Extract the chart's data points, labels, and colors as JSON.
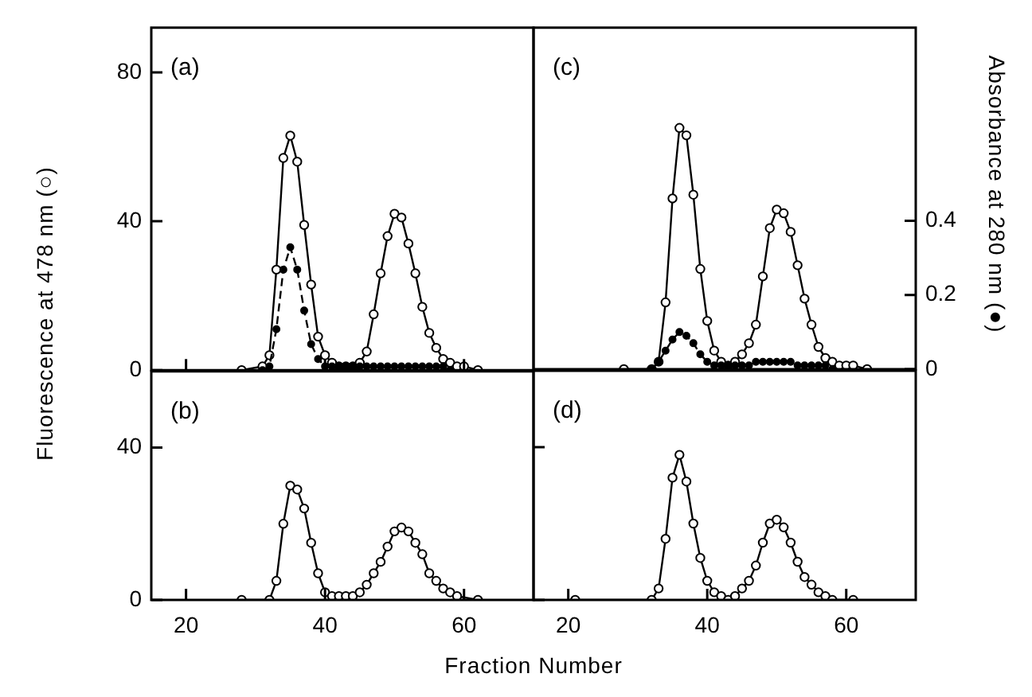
{
  "chart_data": [
    {
      "type": "line",
      "ylabel": "Fluorescence at 478 nm (○)",
      "annotations": [
        "(a)"
      ],
      "tick_labels": "y",
      "xlim": [
        15,
        70
      ],
      "xticks": [
        20,
        40,
        60
      ],
      "ylim": [
        0,
        92
      ],
      "yticks": [
        0,
        40,
        80
      ],
      "y2lim": [
        0,
        0.92
      ],
      "grid": false,
      "legend": false,
      "series": [
        {
          "color": "#000000",
          "marker": "circle",
          "line_style": "solid",
          "x": [
            28,
            31,
            32,
            33,
            34,
            35,
            36,
            37,
            38,
            39,
            40,
            41,
            42,
            43,
            44,
            45,
            46,
            47,
            48,
            49,
            50,
            51,
            52,
            53,
            54,
            55,
            56,
            57,
            58,
            59,
            60,
            62
          ],
          "values": [
            0,
            1,
            4,
            27,
            57,
            63,
            56,
            39,
            23,
            9,
            4,
            2,
            1,
            1,
            1,
            2,
            5,
            15,
            26,
            36,
            42,
            41,
            34,
            26,
            17,
            10,
            6,
            3,
            2,
            1,
            1,
            0
          ]
        },
        {
          "color": "#000000",
          "marker": "circle",
          "line_style": "dashed",
          "axis": "y2",
          "x": [
            31,
            32,
            33,
            34,
            35,
            36,
            37,
            38,
            39,
            40,
            41,
            42,
            43,
            44,
            45,
            46,
            47,
            48,
            49,
            50,
            51,
            52,
            53,
            54,
            55,
            56,
            57,
            58
          ],
          "values": [
            0,
            0.01,
            0.11,
            0.27,
            0.33,
            0.27,
            0.16,
            0.07,
            0.03,
            0.01,
            0.01,
            0.01,
            0.01,
            0.01,
            0.01,
            0.01,
            0.01,
            0.01,
            0.01,
            0.01,
            0.01,
            0.01,
            0.01,
            0.01,
            0.01,
            0.01,
            0.01,
            0
          ]
        }
      ]
    },
    {
      "type": "line",
      "xlabel": "Fraction Number",
      "annotations": [
        "(b)"
      ],
      "xlim": [
        15,
        70
      ],
      "xticks": [
        20,
        40,
        60
      ],
      "ylim": [
        0,
        60
      ],
      "yticks": [
        0,
        40
      ],
      "grid": false,
      "legend": false,
      "series": [
        {
          "color": "#000000",
          "marker": "circle",
          "line_style": "solid",
          "x": [
            28,
            32,
            33,
            34,
            35,
            36,
            37,
            38,
            39,
            40,
            41,
            42,
            43,
            44,
            45,
            46,
            47,
            48,
            49,
            50,
            51,
            52,
            53,
            54,
            55,
            56,
            57,
            58,
            59,
            62
          ],
          "values": [
            0,
            0,
            5,
            20,
            30,
            29,
            24,
            15,
            7,
            2,
            1,
            1,
            1,
            1,
            2,
            4,
            7,
            10,
            14,
            18,
            19,
            18,
            15,
            12,
            7,
            5,
            3,
            2,
            1,
            0
          ]
        }
      ]
    },
    {
      "type": "line",
      "y2label": "Absorbance at 280 nm (●)",
      "annotations": [
        "(c)"
      ],
      "xlim": [
        15,
        70
      ],
      "ylim": [
        0,
        92
      ],
      "y2lim": [
        0,
        0.92
      ],
      "y2ticks": [
        0,
        0.2,
        0.4
      ],
      "grid": false,
      "legend": false,
      "series": [
        {
          "color": "#000000",
          "marker": "circle",
          "line_style": "solid",
          "x": [
            28,
            32,
            33,
            34,
            35,
            36,
            37,
            38,
            39,
            40,
            41,
            42,
            43,
            44,
            45,
            46,
            47,
            48,
            49,
            50,
            51,
            52,
            53,
            54,
            55,
            56,
            57,
            58,
            59,
            60,
            61,
            63
          ],
          "values": [
            0,
            0,
            2,
            18,
            46,
            65,
            63,
            47,
            27,
            13,
            5,
            2,
            1,
            2,
            4,
            7,
            12,
            25,
            38,
            43,
            42,
            37,
            28,
            19,
            12,
            6,
            3,
            2,
            1,
            1,
            1,
            0
          ]
        },
        {
          "color": "#000000",
          "marker": "circle",
          "line_style": "dashed",
          "axis": "y2",
          "x": [
            32,
            33,
            34,
            35,
            36,
            37,
            38,
            39,
            40,
            41,
            42,
            43,
            44,
            45,
            46,
            47,
            48,
            49,
            50,
            51,
            52,
            53,
            54,
            55,
            56,
            57,
            58
          ],
          "values": [
            0,
            0.02,
            0.05,
            0.08,
            0.1,
            0.09,
            0.07,
            0.04,
            0.02,
            0.01,
            0.01,
            0.01,
            0.01,
            0.01,
            0.01,
            0.02,
            0.02,
            0.02,
            0.02,
            0.02,
            0.02,
            0.01,
            0.01,
            0.01,
            0.01,
            0.01,
            0
          ]
        }
      ]
    },
    {
      "type": "line",
      "annotations": [
        "(d)"
      ],
      "tick_labels": "x",
      "xlim": [
        15,
        70
      ],
      "xticks": [
        20,
        40,
        60
      ],
      "ylim": [
        0,
        60
      ],
      "yticks": [
        0,
        40
      ],
      "grid": false,
      "legend": false,
      "series": [
        {
          "color": "#000000",
          "marker": "circle",
          "line_style": "solid",
          "x": [
            21,
            32,
            33,
            34,
            35,
            36,
            37,
            38,
            39,
            40,
            41,
            42,
            43,
            44,
            45,
            46,
            47,
            48,
            49,
            50,
            51,
            52,
            53,
            54,
            55,
            56,
            57,
            58,
            61
          ],
          "values": [
            0,
            0,
            3,
            16,
            32,
            38,
            31,
            20,
            11,
            5,
            2,
            1,
            0,
            1,
            3,
            5,
            9,
            15,
            20,
            21,
            19,
            15,
            10,
            6,
            4,
            2,
            1,
            0,
            0
          ]
        }
      ]
    }
  ]
}
